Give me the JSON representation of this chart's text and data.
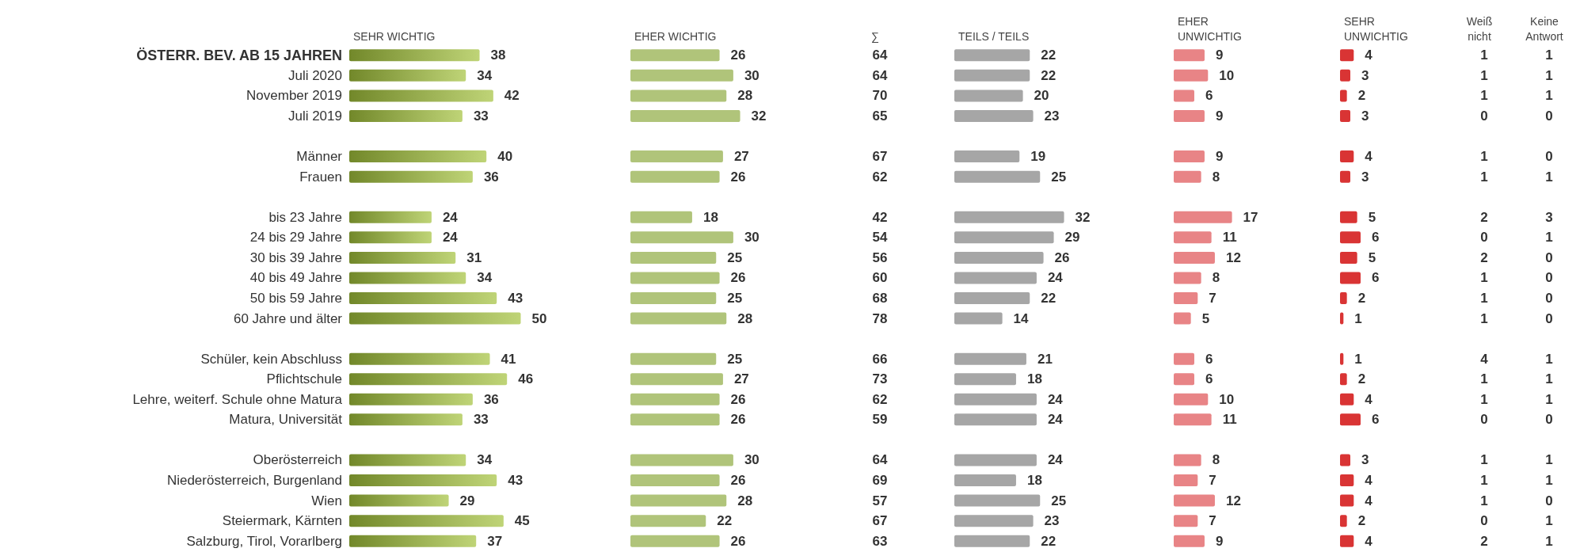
{
  "chart_data": [
    {
      "type": "bar",
      "orientation": "horizontal",
      "title": "SEHR WICHTIG",
      "tick_labels": "y",
      "data_labels": true,
      "categories": [
        "ÖSTERR. BEV. AB 15 JAHREN",
        "Juli 2020",
        "November 2019",
        "Juli 2019",
        null,
        "Männer",
        "Frauen",
        null,
        "bis 23 Jahre",
        "24 bis 29 Jahre",
        "30 bis 39 Jahre",
        "40 bis 49 Jahre",
        "50 bis 59 Jahre",
        "60 Jahre und älter",
        null,
        "Schüler, kein Abschluss",
        "Pflichtschule",
        "Lehre, weiterf. Schule ohne Matura",
        "Matura, Universität",
        null,
        "Oberösterreich",
        "Niederösterreich, Burgenland",
        "Wien",
        "Steiermark, Kärnten",
        "Salzburg, Tirol, Vorarlberg"
      ],
      "color": "#a3c23c",
      "values": [
        38,
        34,
        42,
        33,
        null,
        40,
        36,
        null,
        24,
        24,
        31,
        34,
        43,
        50,
        null,
        41,
        46,
        36,
        33,
        null,
        34,
        43,
        29,
        45,
        37
      ]
    },
    {
      "type": "bar",
      "orientation": "horizontal",
      "title": "EHER WICHTIG",
      "tick_labels": false,
      "data_labels": true,
      "categories": [
        null,
        null,
        null,
        null,
        null,
        null,
        null,
        null,
        null,
        null,
        null,
        null,
        null,
        null,
        null,
        null,
        null,
        null,
        null,
        null,
        null,
        null,
        null,
        null,
        null
      ],
      "color": "#b0c47a",
      "values": [
        26,
        30,
        28,
        32,
        null,
        27,
        26,
        null,
        18,
        30,
        25,
        26,
        25,
        28,
        null,
        25,
        27,
        26,
        26,
        null,
        30,
        26,
        28,
        22,
        26
      ]
    },
    {
      "type": "other",
      "title": "∑",
      "data_labels": true,
      "categories": [
        null,
        null,
        null,
        null,
        null,
        null,
        null,
        null,
        null,
        null,
        null,
        null,
        null,
        null,
        null,
        null,
        null,
        null,
        null,
        null,
        null,
        null,
        null,
        null,
        null
      ],
      "values": [
        64,
        64,
        70,
        65,
        null,
        67,
        62,
        null,
        42,
        54,
        56,
        60,
        68,
        78,
        null,
        66,
        73,
        62,
        59,
        null,
        64,
        69,
        57,
        67,
        63
      ]
    },
    {
      "type": "bar",
      "orientation": "horizontal",
      "title": "TEILS / TEILS",
      "tick_labels": false,
      "data_labels": true,
      "categories": [
        null,
        null,
        null,
        null,
        null,
        null,
        null,
        null,
        null,
        null,
        null,
        null,
        null,
        null,
        null,
        null,
        null,
        null,
        null,
        null,
        null,
        null,
        null,
        null,
        null
      ],
      "color": "#a6a6a6",
      "values": [
        22,
        22,
        20,
        23,
        null,
        19,
        25,
        null,
        32,
        29,
        26,
        24,
        22,
        14,
        null,
        21,
        18,
        24,
        24,
        null,
        24,
        18,
        25,
        23,
        22
      ]
    },
    {
      "type": "bar",
      "orientation": "horizontal",
      "title": "EHER\nUNWICHTIG",
      "tick_labels": false,
      "data_labels": true,
      "categories": [
        null,
        null,
        null,
        null,
        null,
        null,
        null,
        null,
        null,
        null,
        null,
        null,
        null,
        null,
        null,
        null,
        null,
        null,
        null,
        null,
        null,
        null,
        null,
        null,
        null
      ],
      "color": "#e88486",
      "values": [
        9,
        10,
        6,
        9,
        null,
        9,
        8,
        null,
        17,
        11,
        12,
        8,
        7,
        5,
        null,
        6,
        6,
        10,
        11,
        null,
        8,
        7,
        12,
        7,
        9
      ]
    },
    {
      "type": "bar",
      "orientation": "horizontal",
      "title": "SEHR\nUNWICHTIG",
      "tick_labels": false,
      "data_labels": true,
      "categories": [
        null,
        null,
        null,
        null,
        null,
        null,
        null,
        null,
        null,
        null,
        null,
        null,
        null,
        null,
        null,
        null,
        null,
        null,
        null,
        null,
        null,
        null,
        null,
        null,
        null
      ],
      "color": "#d93434",
      "values": [
        4,
        3,
        2,
        3,
        null,
        4,
        3,
        null,
        5,
        6,
        5,
        6,
        2,
        1,
        null,
        1,
        2,
        4,
        6,
        null,
        3,
        4,
        4,
        2,
        4
      ]
    },
    {
      "type": "other",
      "title": "Weiß\nnicht",
      "data_labels": true,
      "categories": [
        null,
        null,
        null,
        null,
        null,
        null,
        null,
        null,
        null,
        null,
        null,
        null,
        null,
        null,
        null,
        null,
        null,
        null,
        null,
        null,
        null,
        null,
        null,
        null,
        null
      ],
      "values": [
        1,
        1,
        1,
        0,
        null,
        1,
        1,
        null,
        2,
        0,
        2,
        1,
        1,
        1,
        null,
        4,
        1,
        1,
        0,
        null,
        1,
        1,
        1,
        0,
        2
      ]
    },
    {
      "type": "other",
      "title": "Keine\nAntwort",
      "data_labels": true,
      "categories": [
        null,
        null,
        null,
        null,
        null,
        null,
        null,
        null,
        null,
        null,
        null,
        null,
        null,
        null,
        null,
        null,
        null,
        null,
        null,
        null,
        null,
        null,
        null,
        null,
        null
      ],
      "values": [
        1,
        1,
        1,
        0,
        null,
        0,
        1,
        null,
        3,
        1,
        0,
        0,
        0,
        0,
        null,
        1,
        1,
        1,
        0,
        null,
        1,
        1,
        0,
        1,
        1
      ]
    }
  ]
}
